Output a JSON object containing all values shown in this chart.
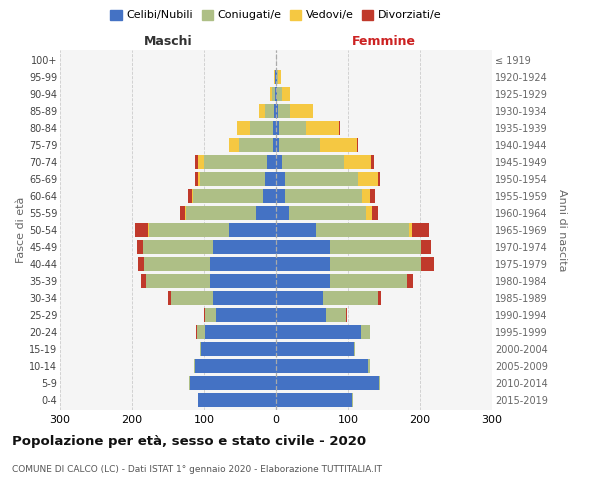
{
  "age_groups": [
    "0-4",
    "5-9",
    "10-14",
    "15-19",
    "20-24",
    "25-29",
    "30-34",
    "35-39",
    "40-44",
    "45-49",
    "50-54",
    "55-59",
    "60-64",
    "65-69",
    "70-74",
    "75-79",
    "80-84",
    "85-89",
    "90-94",
    "95-99",
    "100+"
  ],
  "birth_years": [
    "2015-2019",
    "2010-2014",
    "2005-2009",
    "2000-2004",
    "1995-1999",
    "1990-1994",
    "1985-1989",
    "1980-1984",
    "1975-1979",
    "1970-1974",
    "1965-1969",
    "1960-1964",
    "1955-1959",
    "1950-1954",
    "1945-1949",
    "1940-1944",
    "1935-1939",
    "1930-1934",
    "1925-1929",
    "1920-1924",
    "≤ 1919"
  ],
  "maschi": {
    "celibi": [
      108,
      120,
      112,
      104,
      98,
      83,
      88,
      92,
      92,
      88,
      65,
      28,
      18,
      15,
      12,
      4,
      4,
      3,
      1,
      1,
      0
    ],
    "coniugati": [
      1,
      1,
      2,
      2,
      12,
      15,
      58,
      88,
      92,
      97,
      112,
      97,
      97,
      90,
      88,
      48,
      32,
      12,
      4,
      1,
      0
    ],
    "vedovi": [
      0,
      0,
      0,
      0,
      0,
      0,
      0,
      0,
      0,
      0,
      1,
      1,
      2,
      4,
      8,
      13,
      18,
      8,
      4,
      1,
      0
    ],
    "divorziati": [
      0,
      0,
      0,
      0,
      1,
      2,
      4,
      7,
      8,
      8,
      18,
      7,
      5,
      4,
      4,
      0,
      0,
      0,
      0,
      0,
      0
    ]
  },
  "femmine": {
    "nubili": [
      106,
      143,
      128,
      108,
      118,
      70,
      65,
      75,
      75,
      75,
      55,
      18,
      12,
      12,
      8,
      4,
      4,
      3,
      2,
      1,
      0
    ],
    "coniugate": [
      1,
      1,
      2,
      2,
      12,
      27,
      77,
      107,
      127,
      127,
      130,
      107,
      107,
      102,
      87,
      57,
      37,
      17,
      6,
      2,
      0
    ],
    "vedove": [
      0,
      0,
      0,
      0,
      0,
      0,
      0,
      0,
      0,
      0,
      4,
      8,
      12,
      27,
      37,
      52,
      47,
      32,
      12,
      4,
      0
    ],
    "divorziate": [
      0,
      0,
      0,
      0,
      1,
      2,
      4,
      8,
      18,
      13,
      23,
      9,
      7,
      4,
      4,
      1,
      1,
      0,
      0,
      0,
      0
    ]
  },
  "colors": {
    "celibi": "#4472C4",
    "coniugati": "#AEBF86",
    "vedovi": "#F5C842",
    "divorziati": "#C0392B"
  },
  "xlim": 300,
  "title": "Popolazione per età, sesso e stato civile - 2020",
  "subtitle": "COMUNE DI CALCO (LC) - Dati ISTAT 1° gennaio 2020 - Elaborazione TUTTITALIA.IT",
  "xlabel_left": "Maschi",
  "xlabel_right": "Femmine",
  "ylabel_left": "Fasce di età",
  "ylabel_right": "Anni di nascita",
  "legend_labels": [
    "Celibi/Nubili",
    "Coniugati/e",
    "Vedovi/e",
    "Divorziati/e"
  ],
  "bg_color": "#f5f5f5",
  "grid_color": "#cccccc"
}
